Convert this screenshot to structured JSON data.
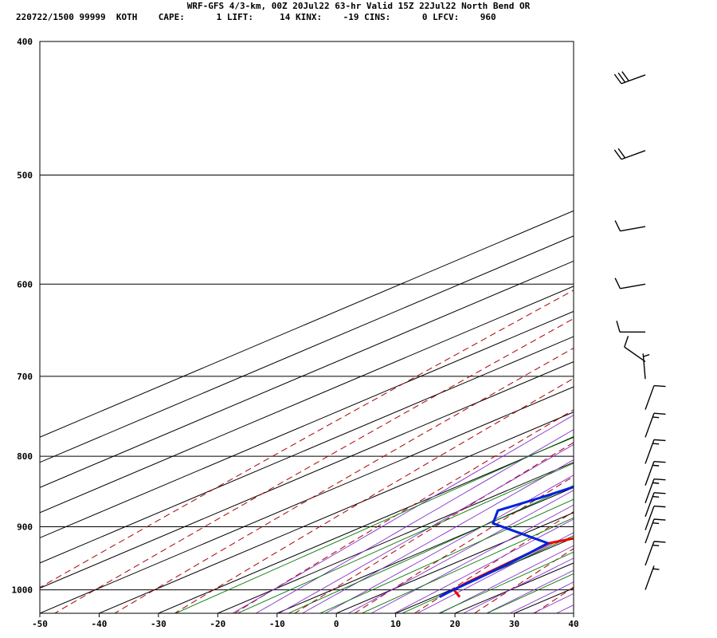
{
  "header": {
    "title": "WRF-GFS 4/3-km, 00Z 20Jul22 63-hr Valid 15Z 22Jul22 North Bend OR",
    "info": "220722/1500 99999  KOTH    CAPE:      1 LIFT:     14 KINX:    -19 CINS:      0 LFCV:    960"
  },
  "colors": {
    "temperature": "#ee0000",
    "dewpoint": "#0022dd",
    "isotherms": "#000000",
    "isobars": "#000000",
    "dry_adiabats": "#aa0000",
    "moist_adiabats": "#8833cc",
    "mixing_ratio": "#007700",
    "wind_barbs": "#000000"
  },
  "chart_data": {
    "type": "line",
    "diagram": "skew-T log-P",
    "xlim": [
      -50,
      40
    ],
    "ylim": [
      1040,
      400
    ],
    "y_scale": "log",
    "x_ticks": [
      -50,
      -40,
      -30,
      -20,
      -10,
      0,
      10,
      20,
      30,
      40
    ],
    "y_ticks": [
      400,
      500,
      600,
      700,
      800,
      900,
      1000
    ],
    "series": [
      {
        "key": "temperature",
        "points": [
          [
            1012,
            14.3
          ],
          [
            1000,
            10.5
          ],
          [
            990,
            9.9
          ],
          [
            965,
            9.2
          ],
          [
            940,
            8.6
          ],
          [
            925,
            8.0
          ],
          [
            915,
            11.1
          ],
          [
            904,
            14.0
          ],
          [
            893,
            14.2
          ],
          [
            867,
            14.0
          ],
          [
            807,
            13.4
          ],
          [
            773,
            10.3
          ],
          [
            752,
            8.2
          ],
          [
            707,
            6.1
          ],
          [
            650,
            4.2
          ],
          [
            600,
            0.9
          ],
          [
            550,
            -2.3
          ],
          [
            500,
            -6.3
          ],
          [
            455,
            -9.4
          ],
          [
            420,
            -13.9
          ]
        ]
      },
      {
        "key": "dewpoint",
        "points": [
          [
            1012,
            10.9
          ],
          [
            1000,
            10.4
          ],
          [
            980,
            10.0
          ],
          [
            960,
            9.4
          ],
          [
            940,
            8.6
          ],
          [
            925,
            7.8
          ],
          [
            910,
            -0.7
          ],
          [
            895,
            -9.3
          ],
          [
            876,
            -13.6
          ],
          [
            857,
            -11.5
          ],
          [
            844,
            -10.4
          ],
          [
            822,
            -7.8
          ],
          [
            782,
            -5.6
          ],
          [
            742,
            -8.7
          ],
          [
            700,
            -10.6
          ],
          [
            650,
            -11.5
          ],
          [
            600,
            -16.5
          ],
          [
            550,
            -21.0
          ],
          [
            500,
            -27.0
          ],
          [
            450,
            -32.8
          ],
          [
            420,
            -36.1
          ]
        ]
      }
    ],
    "wind_barbs": [
      {
        "p": 423,
        "dir": 250,
        "kt": 30
      },
      {
        "p": 480,
        "dir": 250,
        "kt": 20
      },
      {
        "p": 545,
        "dir": 260,
        "kt": 10
      },
      {
        "p": 600,
        "dir": 260,
        "kt": 10
      },
      {
        "p": 650,
        "dir": 270,
        "kt": 10
      },
      {
        "p": 683,
        "dir": 305,
        "kt": 10
      },
      {
        "p": 703,
        "dir": 355,
        "kt": 5
      },
      {
        "p": 740,
        "dir": 20,
        "kt": 10
      },
      {
        "p": 775,
        "dir": 20,
        "kt": 15
      },
      {
        "p": 810,
        "dir": 20,
        "kt": 15
      },
      {
        "p": 840,
        "dir": 20,
        "kt": 15
      },
      {
        "p": 865,
        "dir": 20,
        "kt": 15
      },
      {
        "p": 885,
        "dir": 20,
        "kt": 15
      },
      {
        "p": 905,
        "dir": 20,
        "kt": 10
      },
      {
        "p": 925,
        "dir": 20,
        "kt": 15
      },
      {
        "p": 960,
        "dir": 20,
        "kt": 15
      },
      {
        "p": 1000,
        "dir": 20,
        "kt": 5
      }
    ]
  }
}
